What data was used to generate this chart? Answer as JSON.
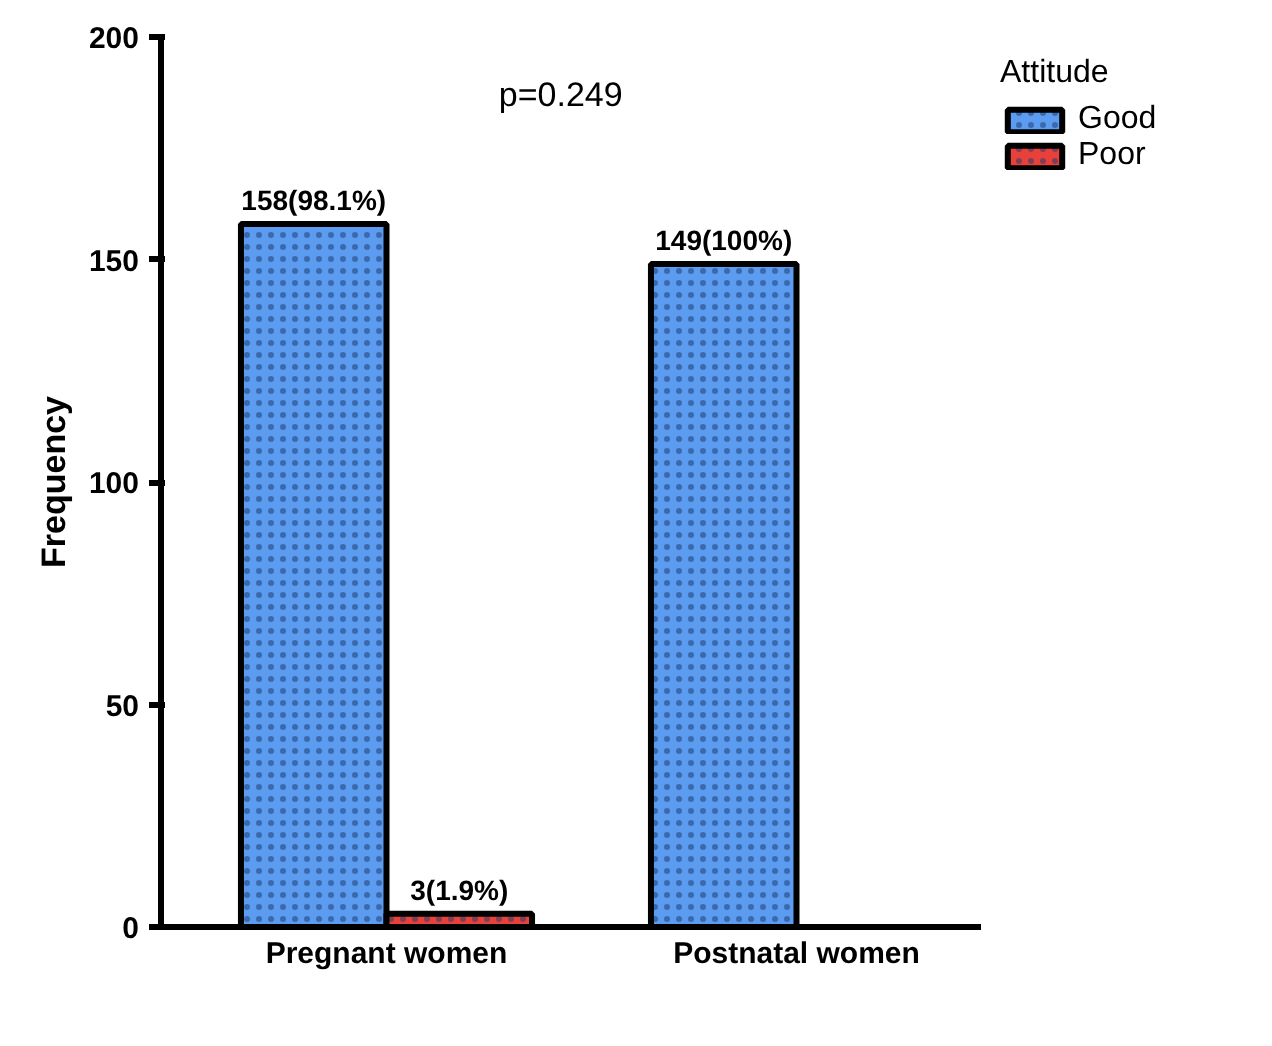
{
  "chart_data": {
    "type": "bar",
    "categories": [
      "Pregnant women",
      "Postnatal women"
    ],
    "ylabel": "Frequency",
    "legend_title": "Attitude",
    "legend": "top right",
    "ylim": [
      0,
      200
    ],
    "yticks": [
      0,
      50,
      100,
      150,
      200
    ],
    "grid": false,
    "series": [
      {
        "name": "Good",
        "color": "#5b9bf0",
        "values": [
          158,
          149
        ],
        "value_labels": [
          "158(98.1%)",
          "149(100%)"
        ]
      },
      {
        "name": "Poor",
        "color": "#e8413c",
        "values": [
          3,
          null
        ],
        "value_labels": [
          "3(1.9%)",
          null
        ]
      }
    ],
    "annotations": [
      "p=0.249"
    ]
  }
}
